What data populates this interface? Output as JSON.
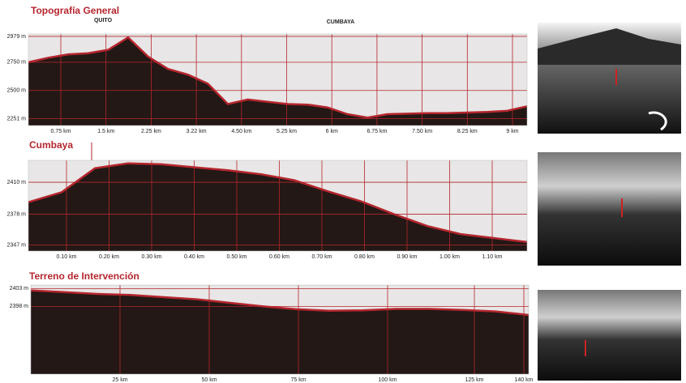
{
  "chart_data": [
    {
      "type": "area",
      "title": "Topografía General",
      "annotations": [
        "QUITO",
        "CUMBAYA"
      ],
      "color": "#231815",
      "line_color": "#b5262e",
      "background": "#e8e6e6",
      "ylim": [
        2190,
        3000
      ],
      "yticks": [
        {
          "value": 2979,
          "label": "2979 m"
        },
        {
          "value": 2750,
          "label": "2750 m"
        },
        {
          "value": 2500,
          "label": "2500 m"
        },
        {
          "value": 2251,
          "label": "2251 m"
        }
      ],
      "xtick_labels": [
        "0.75 km",
        "1.5 km",
        "2.25 km",
        "3.22 km",
        "4.50 km",
        "5.25 km",
        "6 km",
        "6.75 km",
        "7.50 km",
        "8.25 km",
        "9 km"
      ],
      "values": [
        2750,
        2790,
        2820,
        2830,
        2860,
        2970,
        2800,
        2690,
        2640,
        2560,
        2380,
        2420,
        2400,
        2380,
        2375,
        2350,
        2290,
        2260,
        2290,
        2295,
        2300,
        2300,
        2305,
        2310,
        2320,
        2360
      ]
    },
    {
      "type": "area",
      "title": "Cumbaya",
      "color": "#231815",
      "line_color": "#b5262e",
      "background": "#e8e6e6",
      "ylim": [
        2341,
        2432
      ],
      "yticks": [
        {
          "value": 2410,
          "label": "2410 m"
        },
        {
          "value": 2378,
          "label": "2378 m"
        },
        {
          "value": 2347,
          "label": "2347 m"
        }
      ],
      "xtick_labels": [
        "0.10 km",
        "0.20 km",
        "0.30 km",
        "0.40 km",
        "0.50 km",
        "0.60 km",
        "0.70 km",
        "0.80 km",
        "0.90 km",
        "1.00 km",
        "1.10 km"
      ],
      "values": [
        2390,
        2400,
        2424,
        2429,
        2428,
        2425,
        2422,
        2418,
        2412,
        2401,
        2391,
        2378,
        2366,
        2358,
        2354,
        2350
      ]
    },
    {
      "type": "area",
      "title": "Terreno de Intervención",
      "color": "#231815",
      "line_color": "#b5262e",
      "background": "#e8e6e6",
      "ylim": [
        2379,
        2404
      ],
      "yticks": [
        {
          "value": 2403,
          "label": "2403 m"
        },
        {
          "value": 2398,
          "label": "2398 m"
        }
      ],
      "xtick_labels": [
        "25 km",
        "50 km",
        "75 km",
        "100 km",
        "125 km",
        "140 km"
      ],
      "values": [
        2402.5,
        2402.0,
        2401.5,
        2401.2,
        2400.6,
        2400.0,
        2399.0,
        2398.0,
        2397.2,
        2396.8,
        2396.9,
        2397.3,
        2397.3,
        2397.0,
        2396.6,
        2395.6
      ]
    }
  ]
}
